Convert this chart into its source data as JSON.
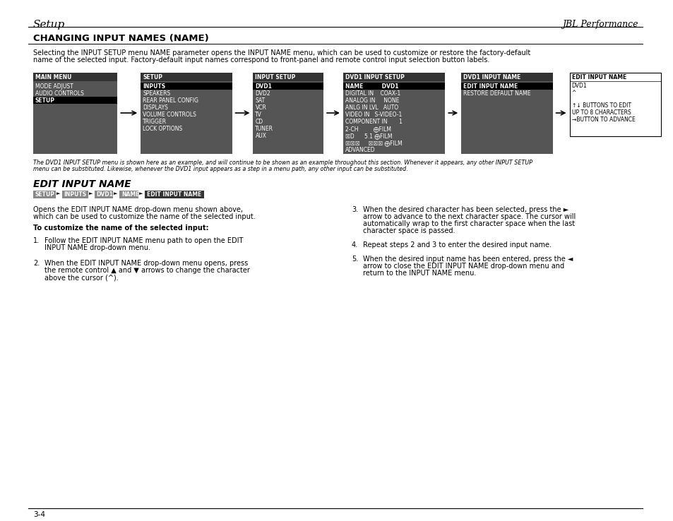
{
  "page_bg": "#ffffff",
  "header_title_left": "Setup",
  "header_title_right": "JBL Performance",
  "section1_title": "CHANGING INPUT NAMES (NAME)",
  "section1_body": "Selecting the INPUT SETUP menu NAME parameter opens the INPUT NAME menu, which can be used to customize or restore the factory-default\nname of the selected input. Factory-default input names correspond to front-panel and remote control input selection button labels.",
  "menu_boxes": [
    {
      "label": "MAIN MENU",
      "items": [
        "MODE ADJUST",
        "AUDIO CONTROLS",
        "SETUP"
      ],
      "highlighted": [
        "SETUP"
      ],
      "bg": "#555555"
    },
    {
      "label": "SETUP",
      "items": [
        "INPUTS",
        "SPEAKERS",
        "REAR PANEL CONFIG",
        "DISPLAYS",
        "VOLUME CONTROLS",
        "TRIGGER",
        "LOCK OPTIONS"
      ],
      "highlighted": [
        "INPUTS"
      ],
      "bg": "#555555"
    },
    {
      "label": "INPUT SETUP",
      "items": [
        "DVD1",
        "DVD2",
        "SAT",
        "VCR",
        "TV",
        "CD",
        "TUNER",
        "AUX"
      ],
      "highlighted": [
        "DVD1"
      ],
      "bg": "#555555"
    },
    {
      "label": "DVD1 INPUT SETUP",
      "items": [
        "NAME          DVD1",
        "DIGITAL IN    COAX-1",
        "ANALOG IN     NONE",
        "ANLG IN LVL   AUTO",
        "VIDEO IN   S-VIDEO-1",
        "COMPONENT IN       1",
        "2-CH         ⨁FILM",
        "☒D      5.1 ⨁FILM",
        "☒☒☒     ☒☒☒ ⨁FILM",
        "ADVANCED"
      ],
      "highlighted": [
        "NAME          DVD1"
      ],
      "bg": "#555555"
    },
    {
      "label": "DVD1 INPUT NAME",
      "items": [
        "EDIT INPUT NAME",
        "RESTORE DEFAULT NAME"
      ],
      "highlighted": [
        "EDIT INPUT NAME"
      ],
      "bg": "#555555"
    }
  ],
  "last_box": {
    "label": "EDIT INPUT NAME",
    "content": "DVD1\n^\n\n↑↓ BUTTONS TO EDIT\nUP TO 8 CHARACTERS\n→BUTTON TO ADVANCE",
    "bg": "#ffffff",
    "border": "#000000"
  },
  "footnote": "The DVD1 INPUT SETUP menu is shown here as an example, and will continue to be shown as an example throughout this section. Whenever it appears, any other INPUT SETUP\nmenu can be substituted. Likewise, whenever the DVD1 input appears as a step in a menu path, any other input can be substituted.",
  "section2_title": "EDIT INPUT NAME",
  "breadcrumb": [
    "SETUP",
    "INPUTS",
    "DVD1",
    "NAME",
    "EDIT INPUT NAME"
  ],
  "section2_para1": "Opens the EDIT INPUT NAME drop-down menu shown above,\nwhich can be used to customize the name of the selected input.",
  "section2_bold": "To customize the name of the selected input:",
  "section2_list": [
    "Follow the EDIT INPUT NAME menu path to open the EDIT\nINPUT NAME drop-down menu.",
    "When the EDIT INPUT NAME drop-down menu opens, press\nthe remote control ▲ and ▼ arrows to change the character\nabove the cursor (^)."
  ],
  "section2_list_right": [
    "When the desired character has been selected, press the ►\narrow to advance to the next character space. The cursor will\nautomatically wrap to the first character space when the last\ncharacter space is passed.",
    "Repeat steps 2 and 3 to enter the desired input name.",
    "When the desired input name has been entered, press the ◄\narrow to close the EDIT INPUT NAME drop-down menu and\nreturn to the INPUT NAME menu."
  ],
  "footer_text": "3-4"
}
